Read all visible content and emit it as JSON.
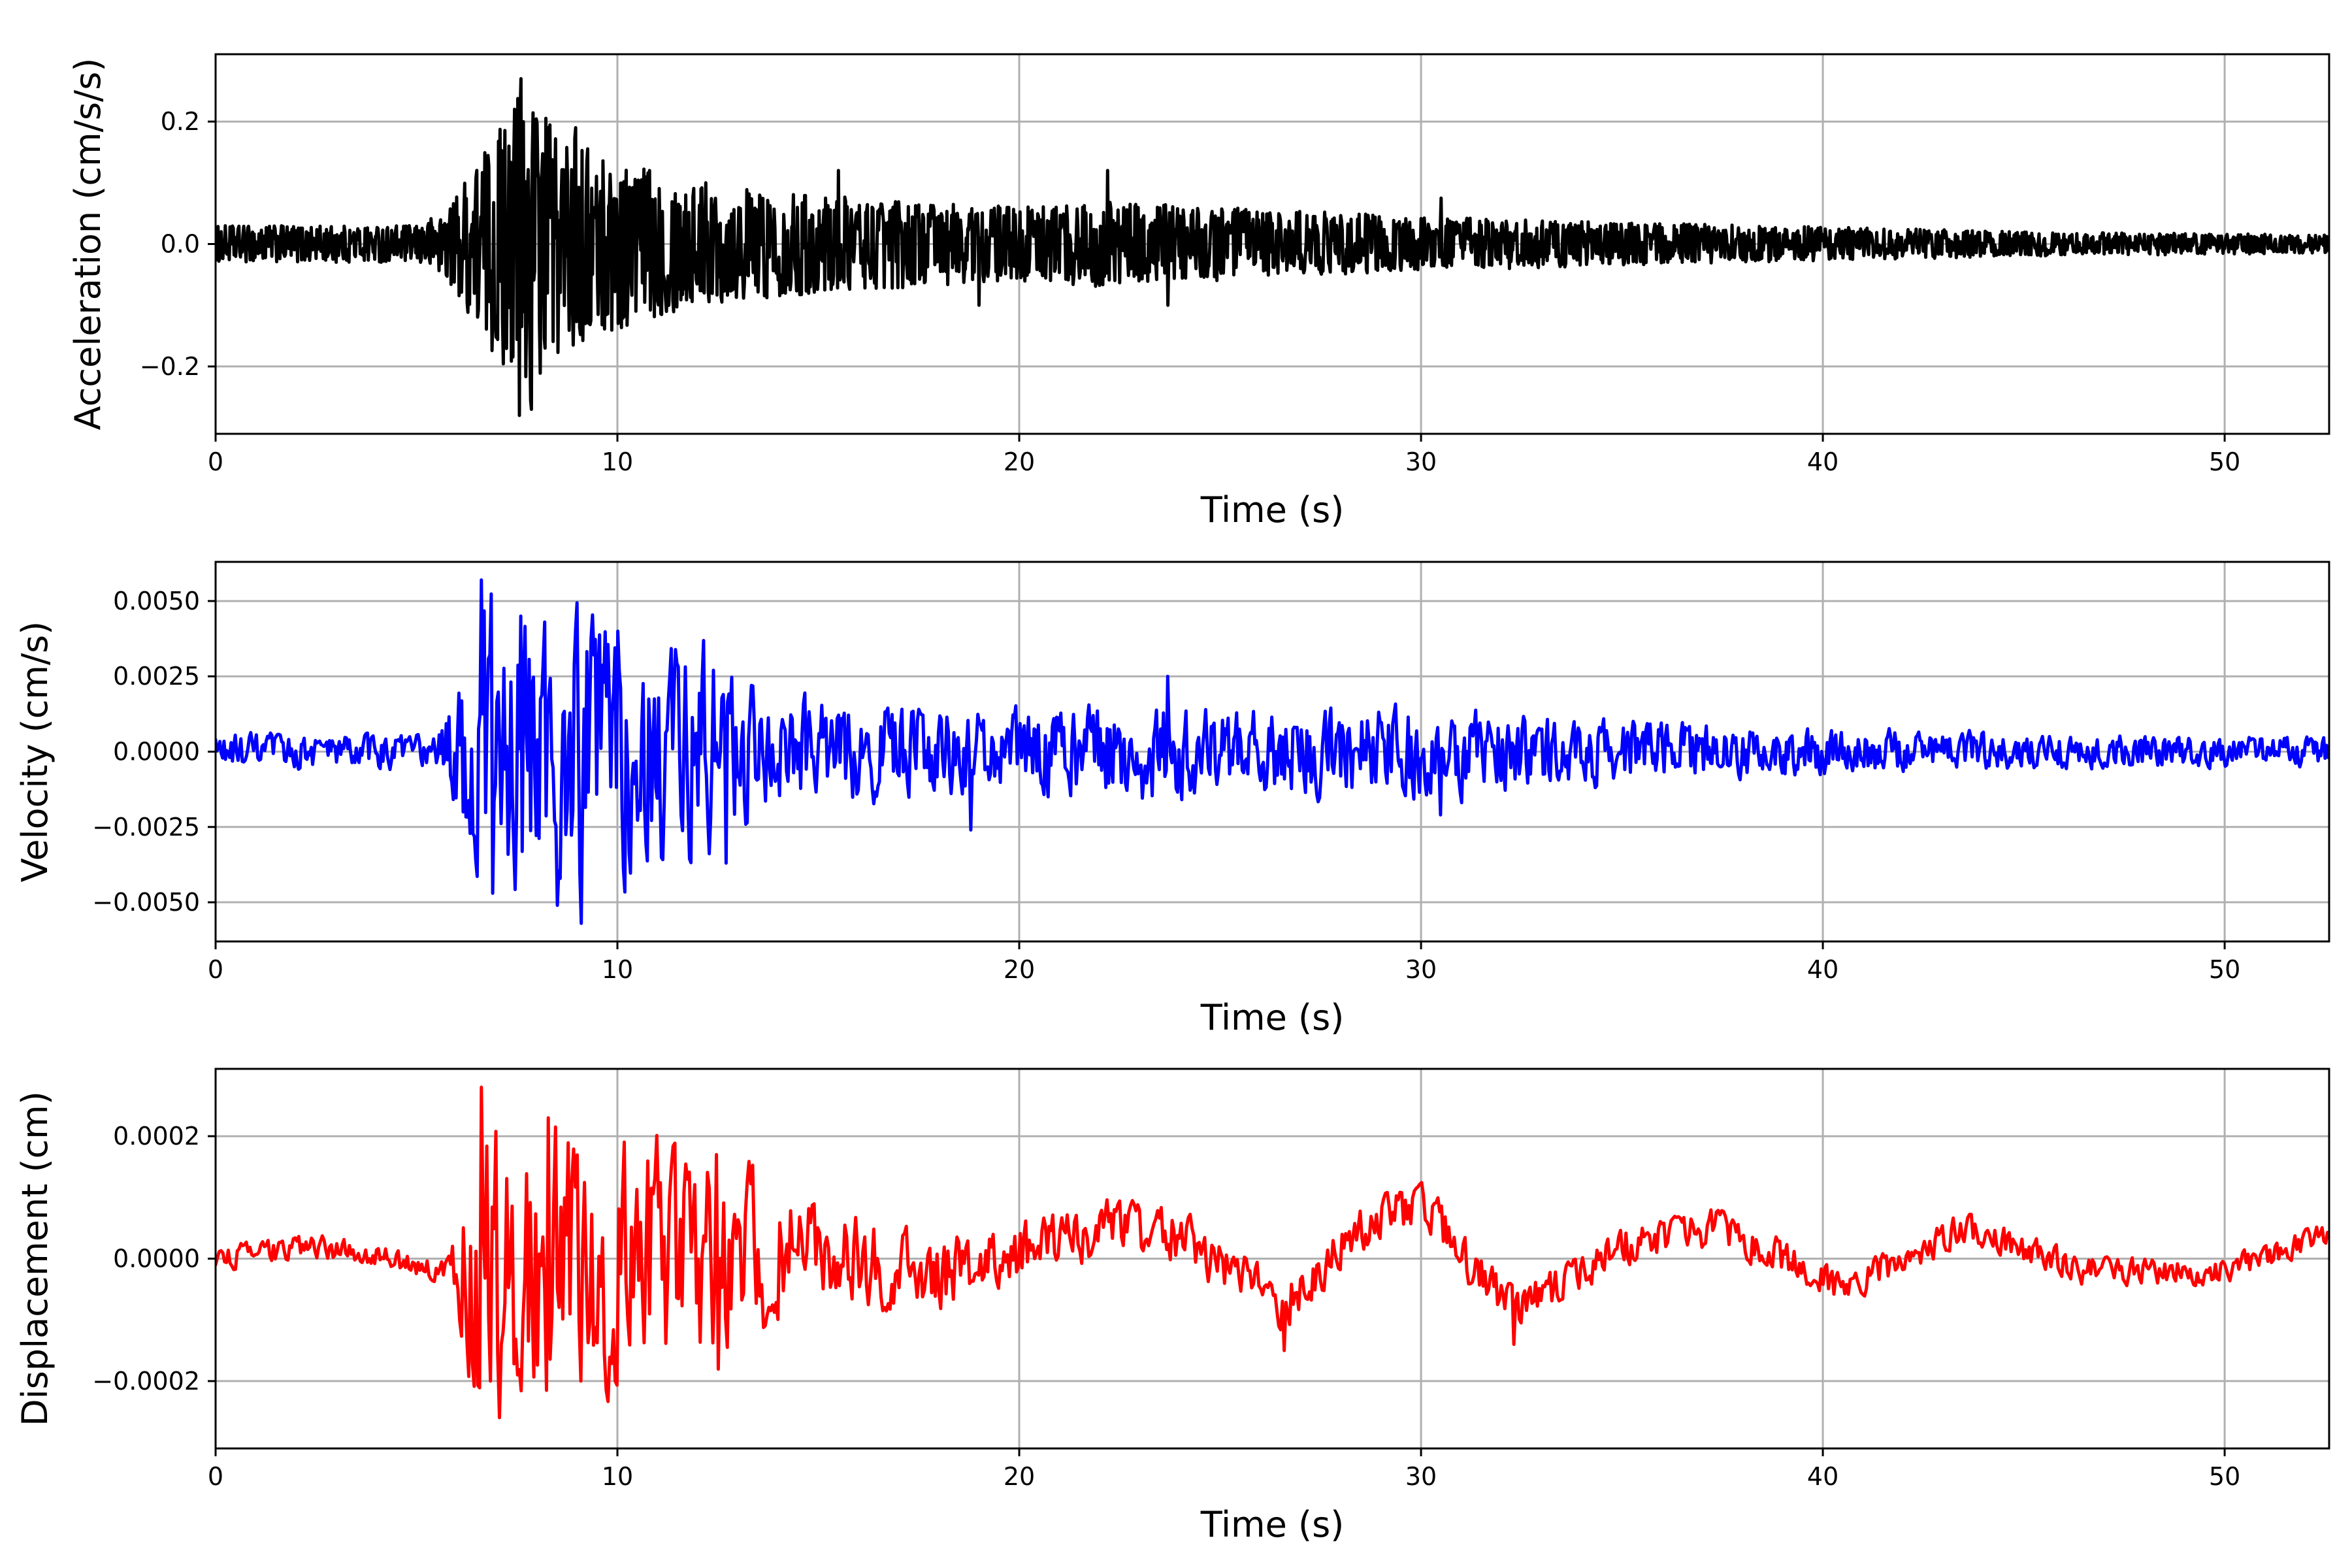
{
  "chart_data": [
    {
      "type": "line",
      "title": "",
      "xlabel": "Time (s)",
      "ylabel": "Acceleration (cm/s/s)",
      "xlim": [
        0,
        52.6
      ],
      "ylim": [
        -0.31,
        0.31
      ],
      "xticks": [
        0,
        10,
        20,
        30,
        40,
        50
      ],
      "yticks": [
        -0.2,
        0.0,
        0.2
      ],
      "xtick_labels": [
        "0",
        "10",
        "20",
        "30",
        "40",
        "50"
      ],
      "ytick_labels": [
        "−0.2",
        "0.0",
        "0.2"
      ],
      "grid": true,
      "series": [
        {
          "color": "#000000",
          "envelope": [
            [
              0,
              0.03
            ],
            [
              5,
              0.03
            ],
            [
              5.8,
              0.06
            ],
            [
              6.5,
              0.14
            ],
            [
              7.3,
              0.22
            ],
            [
              7.7,
              0.28
            ],
            [
              8.3,
              0.2
            ],
            [
              9.5,
              0.15
            ],
            [
              12,
              0.1
            ],
            [
              15,
              0.08
            ],
            [
              20,
              0.06
            ],
            [
              22,
              0.07
            ],
            [
              25,
              0.06
            ],
            [
              30,
              0.045
            ],
            [
              35,
              0.035
            ],
            [
              40,
              0.028
            ],
            [
              45,
              0.02
            ],
            [
              52.6,
              0.015
            ]
          ],
          "peaks": [
            [
              7.6,
              0.27
            ],
            [
              7.55,
              -0.28
            ],
            [
              7.85,
              -0.27
            ],
            [
              7.3,
              0.16
            ],
            [
              8.3,
              0.18
            ],
            [
              8.95,
              0.19
            ],
            [
              9.2,
              -0.13
            ],
            [
              10.8,
              0.12
            ],
            [
              12.2,
              0.1
            ],
            [
              15.5,
              0.12
            ],
            [
              19,
              -0.1
            ],
            [
              22.2,
              0.12
            ],
            [
              23.7,
              -0.1
            ],
            [
              30.5,
              0.075
            ]
          ]
        }
      ]
    },
    {
      "type": "line",
      "title": "",
      "xlabel": "Time (s)",
      "ylabel": "Velocity (cm/s)",
      "xlim": [
        0,
        52.6
      ],
      "ylim": [
        -0.0063,
        0.0063
      ],
      "xticks": [
        0,
        10,
        20,
        30,
        40,
        50
      ],
      "yticks": [
        -0.005,
        -0.0025,
        0.0,
        0.0025,
        0.005
      ],
      "xtick_labels": [
        "0",
        "10",
        "20",
        "30",
        "40",
        "50"
      ],
      "ytick_labels": [
        "−0.0050",
        "−0.0025",
        "0.0000",
        "0.0025",
        "0.0050"
      ],
      "grid": true,
      "series": [
        {
          "color": "#0000ff",
          "envelope": [
            [
              0,
              0.0006
            ],
            [
              5.5,
              0.0006
            ],
            [
              6,
              0.0025
            ],
            [
              6.6,
              0.0055
            ],
            [
              7.5,
              0.0048
            ],
            [
              9.1,
              0.0052
            ],
            [
              10.5,
              0.0038
            ],
            [
              12.7,
              0.0035
            ],
            [
              13.5,
              0.0018
            ],
            [
              18,
              0.0015
            ],
            [
              20,
              0.0014
            ],
            [
              23.7,
              0.0018
            ],
            [
              25,
              0.0014
            ],
            [
              30.4,
              0.0016
            ],
            [
              33.5,
              0.0012
            ],
            [
              40,
              0.0008
            ],
            [
              45,
              0.0006
            ],
            [
              52.6,
              0.0005
            ]
          ],
          "peaks": [
            [
              6.6,
              0.0057
            ],
            [
              9.1,
              -0.0057
            ],
            [
              8.5,
              -0.0051
            ],
            [
              6.9,
              -0.0047
            ],
            [
              7.6,
              0.0045
            ],
            [
              10,
              0.004
            ],
            [
              12.7,
              -0.0037
            ],
            [
              18.8,
              -0.0026
            ],
            [
              23.7,
              0.0025
            ],
            [
              30.5,
              -0.0021
            ]
          ]
        }
      ]
    },
    {
      "type": "line",
      "title": "",
      "xlabel": "Time (s)",
      "ylabel": "Displacement (cm)",
      "xlim": [
        0,
        52.6
      ],
      "ylim": [
        -0.00031,
        0.00031
      ],
      "xticks": [
        0,
        10,
        20,
        30,
        40,
        50
      ],
      "yticks": [
        -0.0002,
        0.0,
        0.0002
      ],
      "xtick_labels": [
        "0",
        "10",
        "20",
        "30",
        "40",
        "50"
      ],
      "ytick_labels": [
        "−0.0002",
        "0.0000",
        "0.0002"
      ],
      "grid": true,
      "series": [
        {
          "color": "#ff0000",
          "baseline": [
            [
              0,
              0
            ],
            [
              2.5,
              2e-05
            ],
            [
              4,
              5e-06
            ],
            [
              5.5,
              -2e-05
            ],
            [
              10,
              0
            ],
            [
              15,
              1e-05
            ],
            [
              18,
              -3e-05
            ],
            [
              22,
              5e-05
            ],
            [
              24,
              4e-05
            ],
            [
              26.5,
              -8e-05
            ],
            [
              28.5,
              5e-05
            ],
            [
              30,
              9e-05
            ],
            [
              32.3,
              -9e-05
            ],
            [
              35,
              2e-05
            ],
            [
              37.5,
              5e-05
            ],
            [
              40.5,
              -5e-05
            ],
            [
              43.5,
              5e-05
            ],
            [
              46.5,
              -2e-05
            ],
            [
              50,
              -2e-05
            ],
            [
              52.6,
              4e-05
            ]
          ],
          "envelope": [
            [
              0,
              2e-05
            ],
            [
              5.8,
              2e-05
            ],
            [
              6.6,
              0.00028
            ],
            [
              8.3,
              0.00024
            ],
            [
              10,
              0.0002
            ],
            [
              12.5,
              0.00018
            ],
            [
              15,
              8e-05
            ],
            [
              20,
              5e-05
            ],
            [
              30,
              4e-05
            ],
            [
              40,
              3e-05
            ],
            [
              52.6,
              2e-05
            ]
          ],
          "peaks": [
            [
              6.6,
              0.00028
            ],
            [
              6.85,
              -0.0002
            ],
            [
              7.5,
              -0.00019
            ],
            [
              8.3,
              0.00023
            ],
            [
              9.1,
              -0.0002
            ],
            [
              9.95,
              -0.0002
            ],
            [
              12.45,
              0.00017
            ],
            [
              26.6,
              -0.00015
            ],
            [
              32.3,
              -0.00014
            ]
          ]
        }
      ]
    }
  ]
}
